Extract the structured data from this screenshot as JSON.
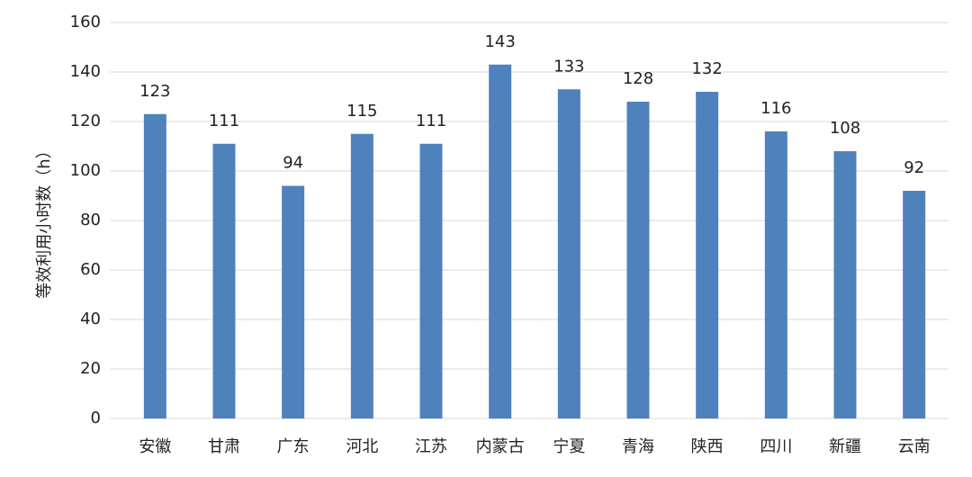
{
  "chart_data": {
    "type": "bar",
    "y_label": "等效利用小时数（h）",
    "categories": [
      "安徽",
      "甘肃",
      "广东",
      "河北",
      "江苏",
      "内蒙古",
      "宁夏",
      "青海",
      "陕西",
      "四川",
      "新疆",
      "云南"
    ],
    "values": [
      123,
      111,
      94,
      115,
      111,
      143,
      133,
      128,
      132,
      116,
      108,
      92
    ],
    "color": "#4f81bd",
    "ylim": [
      0,
      160
    ],
    "yticks": [
      0,
      20,
      40,
      60,
      80,
      100,
      120,
      140,
      160
    ],
    "grid": true
  }
}
